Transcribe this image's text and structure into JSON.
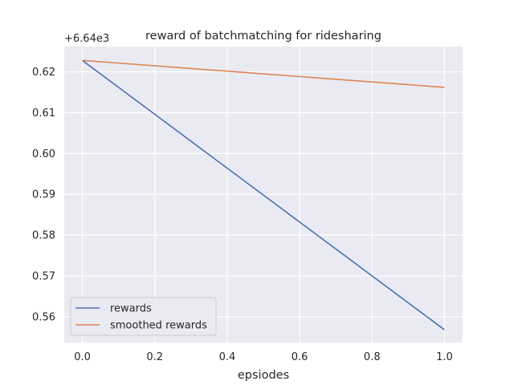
{
  "chart_data": {
    "type": "line",
    "title": "reward of batchmatching for ridesharing",
    "xlabel": "epsiodes",
    "ylabel": "",
    "y_offset_label": "+6.64e3",
    "xlim": [
      -0.05,
      1.05
    ],
    "ylim": [
      0.5537,
      0.6262
    ],
    "xticks": [
      0.0,
      0.2,
      0.4,
      0.6,
      0.8,
      1.0
    ],
    "xtick_labels": [
      "0.0",
      "0.2",
      "0.4",
      "0.6",
      "0.8",
      "1.0"
    ],
    "yticks": [
      0.56,
      0.57,
      0.58,
      0.59,
      0.6,
      0.61,
      0.62
    ],
    "ytick_labels": [
      "0.56",
      "0.57",
      "0.58",
      "0.59",
      "0.60",
      "0.61",
      "0.62"
    ],
    "grid": true,
    "legend_position": "lower-left",
    "series": [
      {
        "name": "rewards",
        "color": "#4c72b0",
        "x": [
          0.0,
          1.0
        ],
        "y": [
          0.6228,
          0.5568
        ]
      },
      {
        "name": "smoothed rewards",
        "color": "#dd8452",
        "x": [
          0.0,
          1.0
        ],
        "y": [
          0.6228,
          0.6162
        ]
      }
    ]
  }
}
